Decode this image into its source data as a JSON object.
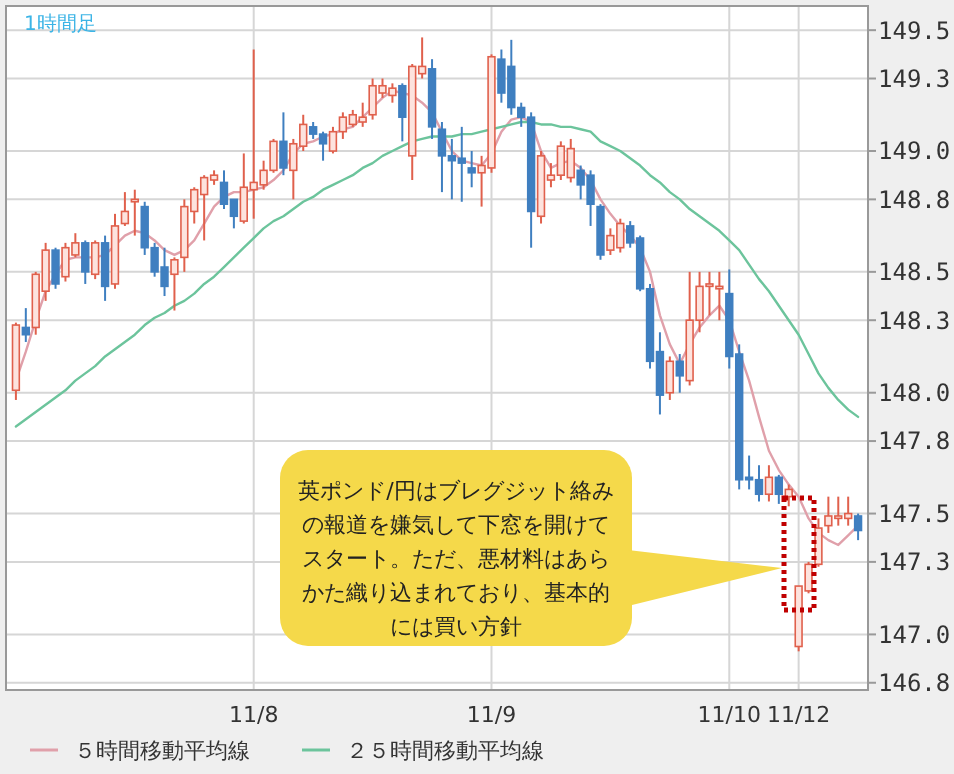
{
  "chart_data": {
    "type": "candlestick",
    "title": "1時間足",
    "categories": [
      null,
      null,
      null,
      null,
      null,
      null,
      null,
      null,
      null,
      null,
      null,
      null,
      null,
      null,
      null,
      null,
      null,
      null,
      null,
      null,
      null,
      null,
      null,
      null,
      "11/8",
      null,
      null,
      null,
      null,
      null,
      null,
      null,
      null,
      null,
      null,
      null,
      null,
      null,
      null,
      null,
      null,
      null,
      null,
      null,
      null,
      null,
      null,
      null,
      "11/9",
      null,
      null,
      null,
      null,
      null,
      null,
      null,
      null,
      null,
      null,
      null,
      null,
      null,
      null,
      null,
      null,
      null,
      null,
      null,
      null,
      null,
      null,
      null,
      "11/10",
      null,
      null,
      null,
      null,
      null,
      null,
      "11/12",
      null,
      null,
      null,
      null,
      null,
      null
    ],
    "ohlc": [
      [
        148.01,
        148.29,
        147.97,
        148.28
      ],
      [
        148.27,
        148.35,
        148.21,
        148.24
      ],
      [
        148.27,
        148.5,
        148.24,
        148.49
      ],
      [
        148.42,
        148.62,
        148.38,
        148.59
      ],
      [
        148.59,
        148.6,
        148.43,
        148.45
      ],
      [
        148.48,
        148.62,
        148.46,
        148.6
      ],
      [
        148.57,
        148.66,
        148.56,
        148.62
      ],
      [
        148.62,
        148.63,
        148.45,
        148.5
      ],
      [
        148.49,
        148.63,
        148.47,
        148.62
      ],
      [
        148.62,
        148.65,
        148.38,
        148.44
      ],
      [
        148.45,
        148.74,
        148.43,
        148.69
      ],
      [
        148.7,
        148.83,
        148.69,
        148.75
      ],
      [
        148.79,
        148.84,
        148.65,
        148.8
      ],
      [
        148.77,
        148.79,
        148.57,
        148.6
      ],
      [
        148.6,
        148.62,
        148.48,
        148.5
      ],
      [
        148.52,
        148.6,
        148.4,
        148.44
      ],
      [
        148.49,
        148.56,
        148.34,
        148.55
      ],
      [
        148.56,
        148.8,
        148.5,
        148.77
      ],
      [
        148.75,
        148.85,
        148.7,
        148.84
      ],
      [
        148.82,
        148.9,
        148.63,
        148.89
      ],
      [
        148.88,
        148.92,
        148.86,
        148.9
      ],
      [
        148.87,
        148.92,
        148.76,
        148.78
      ],
      [
        148.8,
        148.8,
        148.68,
        148.73
      ],
      [
        148.71,
        148.99,
        148.7,
        148.85
      ],
      [
        148.84,
        149.42,
        148.72,
        148.87
      ],
      [
        148.86,
        148.96,
        148.84,
        148.92
      ],
      [
        148.92,
        149.05,
        148.91,
        149.04
      ],
      [
        149.04,
        149.16,
        148.9,
        148.93
      ],
      [
        148.92,
        149.05,
        148.8,
        149.03
      ],
      [
        149.02,
        149.15,
        149.0,
        149.11
      ],
      [
        149.1,
        149.12,
        149.05,
        149.07
      ],
      [
        149.07,
        149.08,
        148.96,
        149.03
      ],
      [
        149.0,
        149.1,
        148.99,
        149.08
      ],
      [
        149.08,
        149.16,
        149.05,
        149.14
      ],
      [
        149.11,
        149.17,
        149.1,
        149.15
      ],
      [
        149.12,
        149.2,
        149.1,
        149.14
      ],
      [
        149.15,
        149.3,
        149.13,
        149.27
      ],
      [
        149.24,
        149.3,
        149.22,
        149.27
      ],
      [
        149.23,
        149.28,
        149.2,
        149.26
      ],
      [
        149.27,
        149.28,
        149.04,
        149.14
      ],
      [
        148.98,
        149.36,
        148.88,
        149.35
      ],
      [
        149.32,
        149.47,
        149.3,
        149.35
      ],
      [
        149.34,
        149.38,
        149.05,
        149.1
      ],
      [
        149.09,
        149.12,
        148.83,
        148.98
      ],
      [
        148.98,
        149.05,
        148.8,
        148.96
      ],
      [
        148.97,
        149.1,
        148.79,
        148.95
      ],
      [
        148.93,
        149.0,
        148.85,
        148.91
      ],
      [
        148.91,
        148.98,
        148.77,
        148.94
      ],
      [
        148.93,
        149.4,
        148.91,
        149.39
      ],
      [
        149.38,
        149.42,
        149.2,
        149.24
      ],
      [
        149.35,
        149.46,
        149.15,
        149.18
      ],
      [
        149.18,
        149.2,
        149.1,
        149.14
      ],
      [
        149.14,
        149.16,
        148.6,
        148.75
      ],
      [
        148.73,
        149.0,
        148.7,
        148.98
      ],
      [
        148.88,
        148.95,
        148.85,
        148.9
      ],
      [
        148.9,
        149.04,
        148.88,
        149.02
      ],
      [
        148.89,
        149.05,
        148.87,
        149.01
      ],
      [
        148.92,
        148.94,
        148.8,
        148.86
      ],
      [
        148.9,
        148.92,
        148.69,
        148.78
      ],
      [
        148.77,
        148.78,
        148.55,
        148.57
      ],
      [
        148.59,
        148.68,
        148.57,
        148.65
      ],
      [
        148.6,
        148.72,
        148.58,
        148.7
      ],
      [
        148.69,
        148.71,
        148.6,
        148.62
      ],
      [
        148.64,
        148.65,
        148.42,
        148.43
      ],
      [
        148.43,
        148.45,
        148.1,
        148.13
      ],
      [
        148.17,
        148.25,
        147.91,
        147.99
      ],
      [
        148.0,
        148.15,
        147.97,
        148.13
      ],
      [
        148.13,
        148.16,
        148.0,
        148.07
      ],
      [
        148.05,
        148.5,
        148.03,
        148.3
      ],
      [
        148.3,
        148.5,
        148.25,
        148.44
      ],
      [
        148.44,
        148.5,
        148.32,
        148.45
      ],
      [
        148.43,
        148.5,
        148.3,
        148.44
      ],
      [
        148.41,
        148.51,
        148.1,
        148.15
      ],
      [
        148.16,
        148.2,
        147.6,
        147.64
      ],
      [
        147.65,
        147.74,
        147.6,
        147.64
      ],
      [
        147.64,
        147.7,
        147.55,
        147.58
      ],
      [
        147.58,
        147.7,
        147.55,
        147.65
      ],
      [
        147.65,
        147.66,
        147.54,
        147.58
      ],
      [
        147.57,
        147.62,
        147.53,
        147.6
      ],
      [
        146.95,
        147.2,
        146.93,
        147.2
      ],
      [
        147.18,
        147.3,
        147.17,
        147.29
      ],
      [
        147.29,
        147.48,
        147.28,
        147.44
      ],
      [
        147.45,
        147.57,
        147.42,
        147.49
      ],
      [
        147.48,
        147.57,
        147.45,
        147.49
      ],
      [
        147.48,
        147.57,
        147.45,
        147.5
      ],
      [
        147.49,
        147.5,
        147.39,
        147.43
      ]
    ],
    "series": [
      {
        "name": "５時間移動平均線",
        "type": "line",
        "color": "#e0a0aa",
        "values": [
          148.05,
          148.17,
          148.3,
          148.42,
          148.49,
          148.55,
          148.56,
          148.56,
          148.56,
          148.57,
          148.61,
          148.65,
          148.67,
          148.66,
          148.63,
          148.59,
          148.57,
          148.59,
          148.63,
          148.7,
          148.77,
          148.81,
          148.83,
          148.83,
          148.84,
          148.85,
          148.88,
          148.92,
          148.99,
          149.03,
          149.04,
          149.06,
          149.07,
          149.09,
          149.1,
          149.14,
          149.18,
          149.22,
          149.25,
          149.24,
          149.23,
          149.2,
          149.16,
          149.08,
          149.0,
          148.96,
          148.95,
          148.94,
          148.99,
          149.08,
          149.13,
          149.14,
          149.12,
          149.0,
          148.93,
          148.95,
          148.96,
          148.93,
          148.88,
          148.8,
          148.74,
          148.69,
          148.65,
          148.6,
          148.5,
          148.32,
          148.2,
          148.12,
          148.2,
          148.27,
          148.32,
          148.36,
          148.3,
          148.17,
          148.05,
          147.9,
          147.76,
          147.68,
          147.62,
          147.57,
          147.48,
          147.42,
          147.39,
          147.37,
          147.41,
          147.45
        ]
      },
      {
        "name": "２５時間移動平均線",
        "type": "line",
        "color": "#6cc49c",
        "values": [
          147.86,
          147.89,
          147.92,
          147.95,
          147.98,
          148.01,
          148.05,
          148.08,
          148.11,
          148.15,
          148.18,
          148.21,
          148.24,
          148.28,
          148.31,
          148.33,
          148.36,
          148.38,
          148.41,
          148.45,
          148.48,
          148.52,
          148.56,
          148.6,
          148.64,
          148.68,
          148.71,
          148.73,
          148.76,
          148.79,
          148.81,
          148.84,
          148.86,
          148.88,
          148.9,
          148.93,
          148.95,
          148.98,
          149.0,
          149.02,
          149.04,
          149.05,
          149.06,
          149.06,
          149.06,
          149.07,
          149.07,
          149.08,
          149.09,
          149.1,
          149.11,
          149.12,
          149.12,
          149.11,
          149.11,
          149.1,
          149.1,
          149.09,
          149.08,
          149.04,
          149.02,
          149.0,
          148.97,
          148.94,
          148.9,
          148.87,
          148.83,
          148.8,
          148.76,
          148.73,
          148.7,
          148.67,
          148.63,
          148.59,
          148.53,
          148.47,
          148.42,
          148.36,
          148.3,
          148.24,
          148.16,
          148.08,
          148.02,
          147.97,
          147.93,
          147.9
        ]
      }
    ],
    "ylim": [
      146.77,
      149.6
    ],
    "yticks": [
      146.8,
      {
        "value": 147,
        "label": "147.0"
      },
      147.3,
      147.5,
      147.8,
      {
        "value": 148,
        "label": "148.0"
      },
      148.3,
      148.5,
      148.8,
      {
        "value": 149,
        "label": "149.0"
      },
      149.3,
      149.5
    ],
    "grid": true,
    "legend": "bottom",
    "annotations": [
      "英ポンド/円はブレグジット絡みの報道を嫌気して下窓を開けてスタート。ただ、悪材料はあらかた織り込まれており、基本的には買い方針"
    ]
  }
}
